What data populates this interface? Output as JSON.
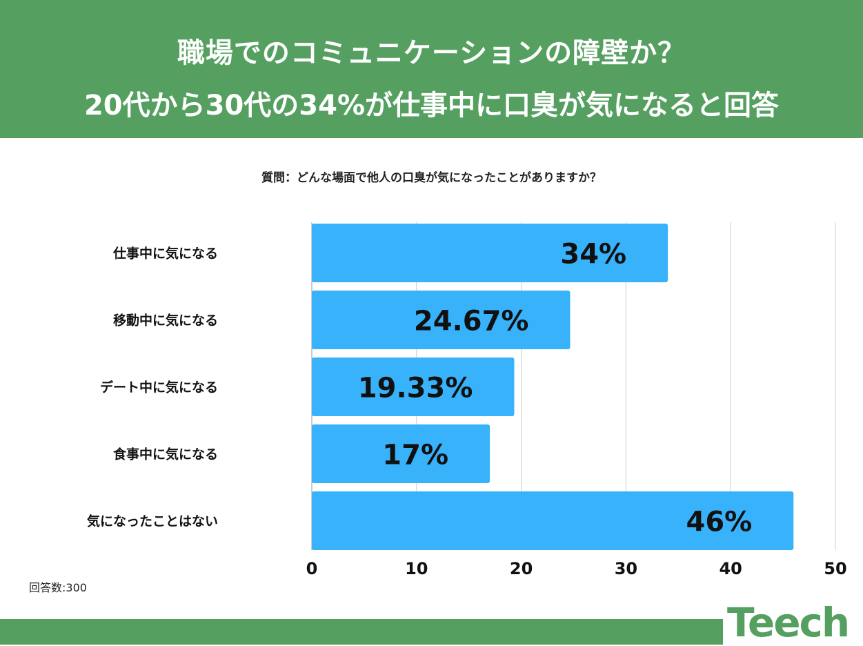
{
  "header": {
    "title_line1": "職場でのコミュニケーションの障壁か？",
    "title_line2": "20代から30代の34%が仕事中に口臭が気になると回答"
  },
  "question": "質問：どんな場面で他人の口臭が気になったことがありますか？",
  "respondents": "回答数:300",
  "logo": {
    "text": "Teech"
  },
  "colors": {
    "brand_green": "#55a060",
    "bar": "#38b2fa",
    "grid": "#cccccc"
  },
  "chart_data": {
    "type": "bar",
    "orientation": "horizontal",
    "categories": [
      "仕事中に気になる",
      "移動中に気になる",
      "デート中に気になる",
      "食事中に気になる",
      "気になったことはない"
    ],
    "values": [
      34,
      24.67,
      19.33,
      17,
      46
    ],
    "data_labels": [
      "34%",
      "24.67%",
      "19.33%",
      "17%",
      "46%"
    ],
    "xlim": [
      0,
      50
    ],
    "x_ticks": [
      0,
      10,
      20,
      30,
      40,
      50
    ],
    "grid": true
  }
}
